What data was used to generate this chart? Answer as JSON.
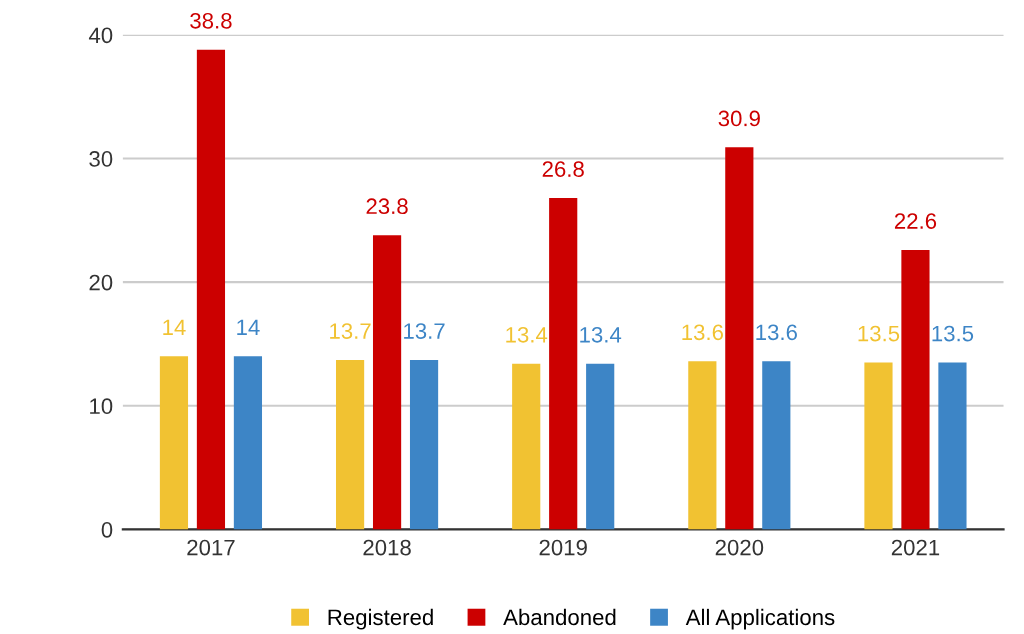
{
  "chart_data": {
    "type": "bar",
    "categories": [
      "2017",
      "2018",
      "2019",
      "2020",
      "2021"
    ],
    "series": [
      {
        "name": "Registered",
        "color": "#f1c232",
        "values": [
          14,
          13.7,
          13.4,
          13.6,
          13.5
        ]
      },
      {
        "name": "Abandoned",
        "color": "#cc0000",
        "values": [
          38.8,
          23.8,
          26.8,
          30.9,
          22.6
        ]
      },
      {
        "name": "All Applications",
        "color": "#3d85c6",
        "values": [
          14,
          13.7,
          13.4,
          13.6,
          13.5
        ]
      }
    ],
    "ylim": [
      0,
      40
    ],
    "yticks": [
      0,
      10,
      20,
      30,
      40
    ],
    "grid": "y",
    "legend": "bottom",
    "data_labels": true
  }
}
